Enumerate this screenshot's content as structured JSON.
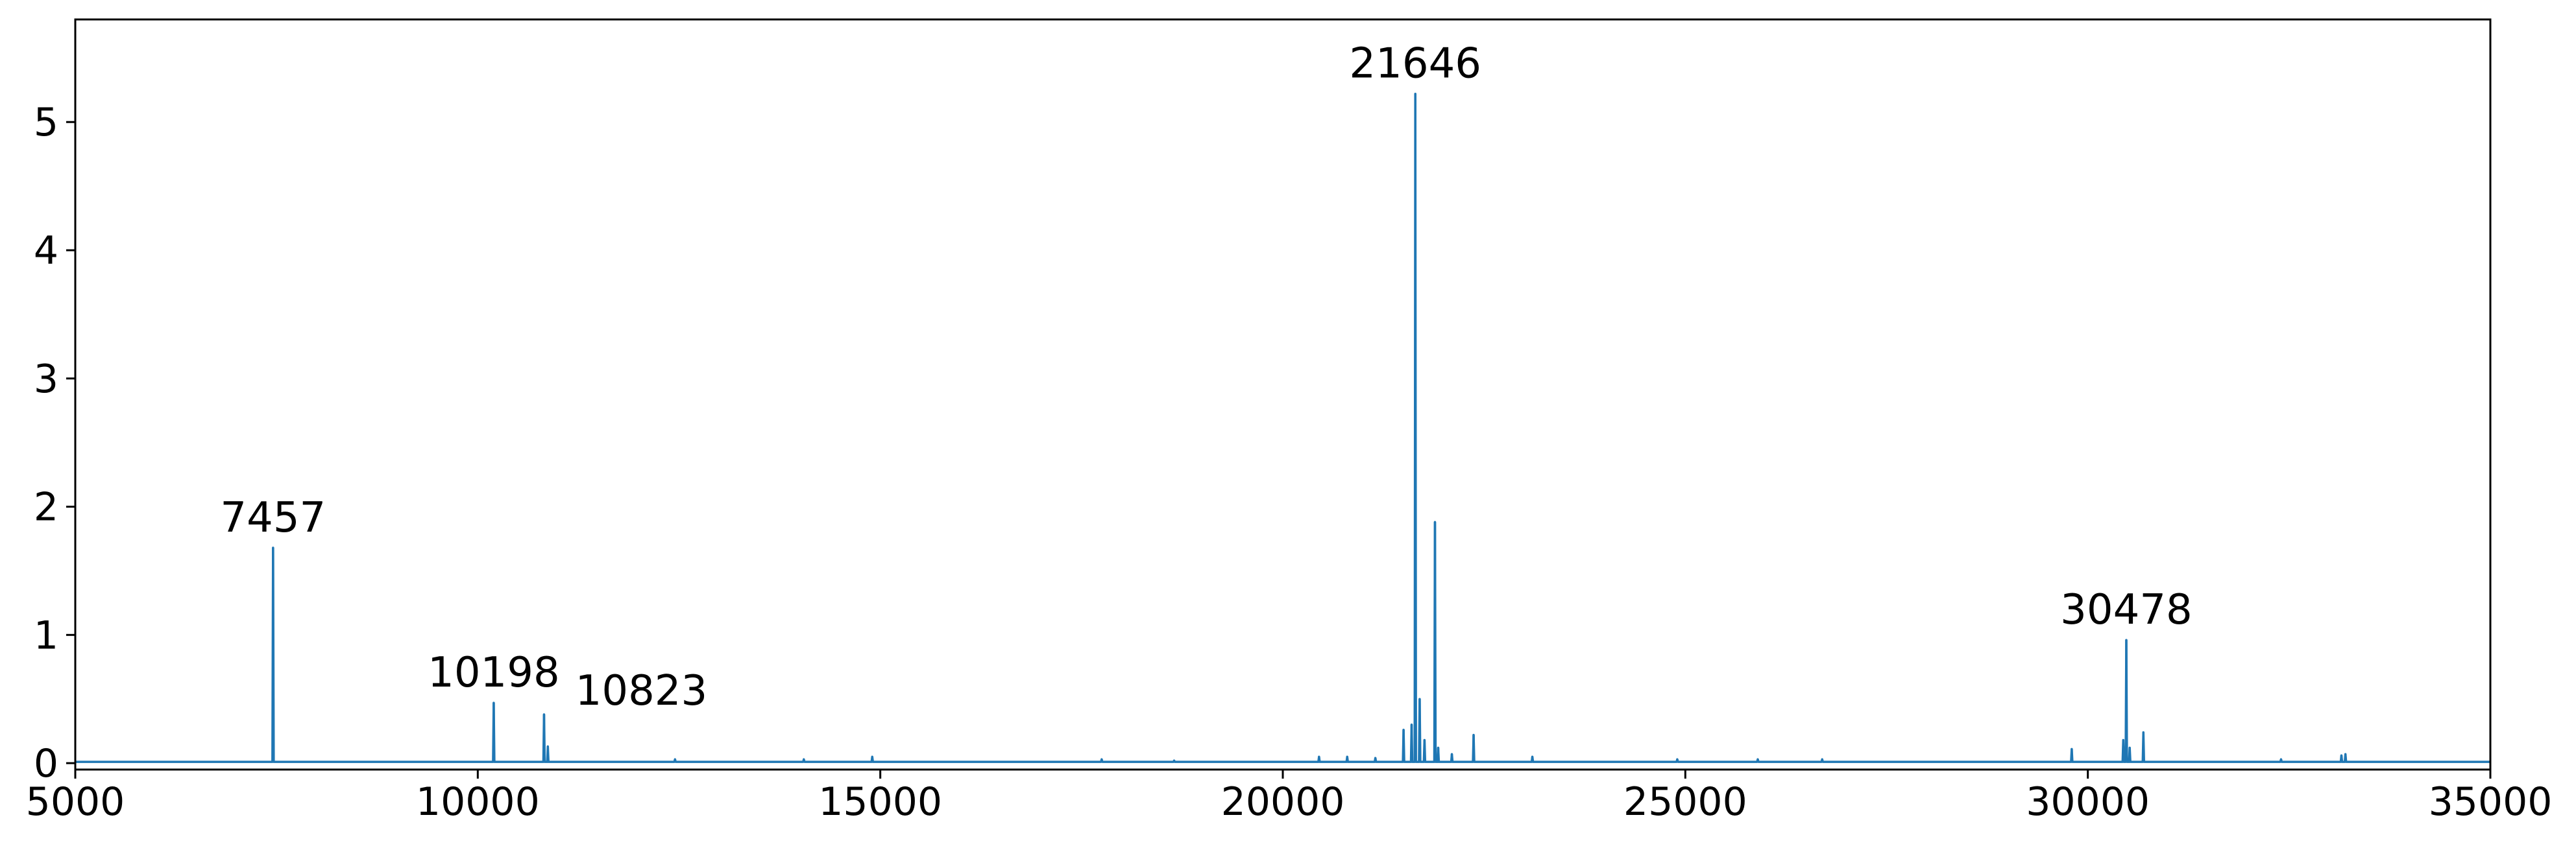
{
  "chart_data": {
    "type": "line",
    "title": "",
    "xlabel": "",
    "ylabel": "",
    "xlim": [
      5000,
      35000
    ],
    "ylim": [
      -0.05,
      5.8
    ],
    "xticks": [
      5000,
      10000,
      15000,
      20000,
      25000,
      30000,
      35000
    ],
    "yticks": [
      0,
      1,
      2,
      3,
      4,
      5
    ],
    "grid": false,
    "legend": "none",
    "line_color": "#1f77b4",
    "baseline": 0.01,
    "peaks": [
      {
        "x": 7457,
        "y": 1.68
      },
      {
        "x": 10198,
        "y": 0.47
      },
      {
        "x": 10823,
        "y": 0.38
      },
      {
        "x": 10870,
        "y": 0.13
      },
      {
        "x": 21500,
        "y": 0.26
      },
      {
        "x": 21600,
        "y": 0.3
      },
      {
        "x": 21646,
        "y": 5.22
      },
      {
        "x": 21700,
        "y": 0.5
      },
      {
        "x": 21760,
        "y": 0.18
      },
      {
        "x": 21890,
        "y": 1.88
      },
      {
        "x": 21930,
        "y": 0.12
      },
      {
        "x": 22100,
        "y": 0.07
      },
      {
        "x": 22370,
        "y": 0.22
      },
      {
        "x": 20450,
        "y": 0.05
      },
      {
        "x": 20800,
        "y": 0.05
      },
      {
        "x": 21150,
        "y": 0.04
      },
      {
        "x": 23100,
        "y": 0.05
      },
      {
        "x": 14900,
        "y": 0.05
      },
      {
        "x": 14050,
        "y": 0.03
      },
      {
        "x": 12450,
        "y": 0.03
      },
      {
        "x": 29800,
        "y": 0.11
      },
      {
        "x": 30440,
        "y": 0.18
      },
      {
        "x": 30478,
        "y": 0.96
      },
      {
        "x": 30520,
        "y": 0.12
      },
      {
        "x": 30690,
        "y": 0.24
      },
      {
        "x": 33150,
        "y": 0.06
      },
      {
        "x": 33200,
        "y": 0.07
      },
      {
        "x": 32400,
        "y": 0.03
      },
      {
        "x": 24900,
        "y": 0.03
      },
      {
        "x": 25900,
        "y": 0.03
      },
      {
        "x": 26700,
        "y": 0.03
      },
      {
        "x": 17750,
        "y": 0.03
      },
      {
        "x": 18650,
        "y": 0.02
      }
    ],
    "annotations": [
      {
        "text": "7457",
        "x": 7457,
        "y": 1.68
      },
      {
        "text": "10198",
        "x": 10198,
        "y": 0.47
      },
      {
        "text": "10823",
        "x": 10823,
        "y": 0.38
      },
      {
        "text": "21646",
        "x": 21646,
        "y": 5.22
      },
      {
        "text": "30478",
        "x": 30478,
        "y": 0.96
      }
    ]
  }
}
